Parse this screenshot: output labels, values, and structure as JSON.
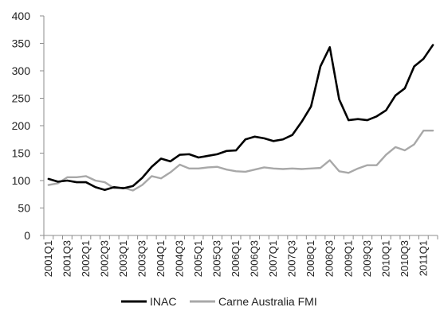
{
  "chart_data": {
    "type": "line",
    "title": "",
    "xlabel": "",
    "ylabel": "",
    "ylim": [
      0,
      400
    ],
    "yticks": [
      0,
      50,
      100,
      150,
      200,
      250,
      300,
      350,
      400
    ],
    "grid": false,
    "legend_position": "bottom",
    "categories": [
      "2001Q1",
      "2001Q2",
      "2001Q3",
      "2001Q4",
      "2002Q1",
      "2002Q2",
      "2002Q3",
      "2002Q4",
      "2003Q1",
      "2003Q2",
      "2003Q3",
      "2003Q4",
      "2004Q1",
      "2004Q2",
      "2004Q3",
      "2004Q4",
      "2005Q1",
      "2005Q2",
      "2005Q3",
      "2005Q4",
      "2006Q1",
      "2006Q2",
      "2006Q3",
      "2006Q4",
      "2007Q1",
      "2007Q2",
      "2007Q3",
      "2007Q4",
      "2008Q1",
      "2008Q2",
      "2008Q3",
      "2008Q4",
      "2009Q1",
      "2009Q2",
      "2009Q3",
      "2009Q4",
      "2010Q1",
      "2010Q2",
      "2010Q3",
      "2010Q4",
      "2011Q1",
      "2011Q2"
    ],
    "tick_labels": [
      "2001Q1",
      "2001Q3",
      "2002Q1",
      "2002Q3",
      "2003Q1",
      "2003Q3",
      "2004Q1",
      "2004Q3",
      "2005Q1",
      "2005Q3",
      "2006Q1",
      "2006Q3",
      "2007Q1",
      "2007Q3",
      "2008Q1",
      "2008Q3",
      "2009Q1",
      "2009Q3",
      "2010Q1",
      "2010Q3",
      "2011Q1"
    ],
    "series": [
      {
        "name": "INAC",
        "color": "#000000",
        "values": [
          103,
          98,
          100,
          97,
          97,
          88,
          83,
          88,
          86,
          90,
          105,
          125,
          140,
          135,
          147,
          148,
          142,
          145,
          148,
          154,
          155,
          175,
          180,
          177,
          172,
          175,
          183,
          207,
          235,
          308,
          343,
          248,
          210,
          212,
          210,
          217,
          228,
          255,
          268,
          308,
          322,
          347
        ]
      },
      {
        "name": "Carne Australia FMI",
        "color": "#a8a8a8",
        "values": [
          92,
          95,
          106,
          106,
          108,
          100,
          97,
          86,
          87,
          82,
          92,
          108,
          104,
          115,
          129,
          122,
          122,
          124,
          125,
          120,
          117,
          116,
          120,
          124,
          122,
          121,
          122,
          121,
          122,
          123,
          137,
          117,
          114,
          122,
          128,
          128,
          147,
          161,
          155,
          166,
          191,
          191
        ]
      }
    ]
  }
}
